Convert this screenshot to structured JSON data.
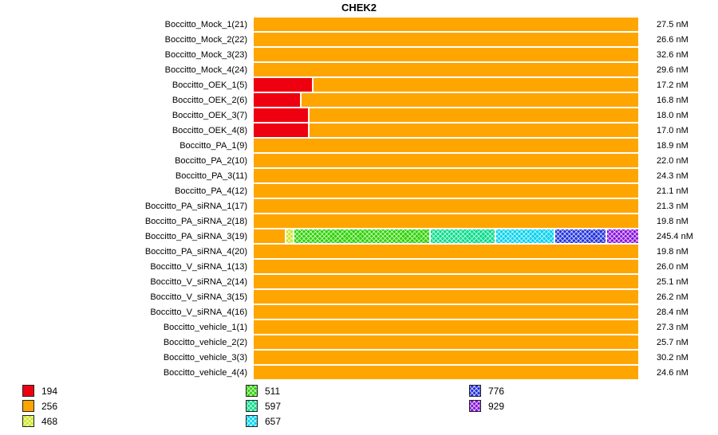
{
  "title": "CHEK2",
  "chart_data": {
    "type": "bar",
    "orientation": "horizontal",
    "title": "CHEK2",
    "value_unit": "nM",
    "legend": [
      {
        "value": 194,
        "color": "#ee0011",
        "hatch": false
      },
      {
        "value": 256,
        "color": "#ffa500",
        "hatch": false
      },
      {
        "value": 468,
        "color": "#cde61a",
        "hatch": true
      },
      {
        "value": 511,
        "color": "#2bd300",
        "hatch": true
      },
      {
        "value": 597,
        "color": "#00dd88",
        "hatch": true
      },
      {
        "value": 657,
        "color": "#00d2ee",
        "hatch": true
      },
      {
        "value": 776,
        "color": "#2233dd",
        "hatch": true
      },
      {
        "value": 929,
        "color": "#8811dd",
        "hatch": true
      }
    ],
    "rows": [
      {
        "label": "Boccitto_Mock_1(21)",
        "value_nM": 27.5,
        "value_label": "27.5 nM",
        "segments": [
          {
            "value": 256,
            "pct": 100
          }
        ]
      },
      {
        "label": "Boccitto_Mock_2(22)",
        "value_nM": 26.6,
        "value_label": "26.6 nM",
        "segments": [
          {
            "value": 256,
            "pct": 100
          }
        ]
      },
      {
        "label": "Boccitto_Mock_3(23)",
        "value_nM": 32.6,
        "value_label": "32.6 nM",
        "segments": [
          {
            "value": 256,
            "pct": 100
          }
        ]
      },
      {
        "label": "Boccitto_Mock_4(24)",
        "value_nM": 29.6,
        "value_label": "29.6 nM",
        "segments": [
          {
            "value": 256,
            "pct": 100
          }
        ]
      },
      {
        "label": "Boccitto_OEK_1(5)",
        "value_nM": 17.2,
        "value_label": "17.2 nM",
        "segments": [
          {
            "value": 194,
            "pct": 15.5
          },
          {
            "value": 256,
            "pct": 84.5
          }
        ]
      },
      {
        "label": "Boccitto_OEK_2(6)",
        "value_nM": 16.8,
        "value_label": "16.8 nM",
        "segments": [
          {
            "value": 194,
            "pct": 12.5
          },
          {
            "value": 256,
            "pct": 87.5
          }
        ]
      },
      {
        "label": "Boccitto_OEK_3(7)",
        "value_nM": 18.0,
        "value_label": "18.0 nM",
        "segments": [
          {
            "value": 194,
            "pct": 14.5
          },
          {
            "value": 256,
            "pct": 85.5
          }
        ]
      },
      {
        "label": "Boccitto_OEK_4(8)",
        "value_nM": 17.0,
        "value_label": "17.0 nM",
        "segments": [
          {
            "value": 194,
            "pct": 14.5
          },
          {
            "value": 256,
            "pct": 85.5
          }
        ]
      },
      {
        "label": "Boccitto_PA_1(9)",
        "value_nM": 18.9,
        "value_label": "18.9 nM",
        "segments": [
          {
            "value": 256,
            "pct": 100
          }
        ]
      },
      {
        "label": "Boccitto_PA_2(10)",
        "value_nM": 22.0,
        "value_label": "22.0 nM",
        "segments": [
          {
            "value": 256,
            "pct": 100
          }
        ]
      },
      {
        "label": "Boccitto_PA_3(11)",
        "value_nM": 24.3,
        "value_label": "24.3 nM",
        "segments": [
          {
            "value": 256,
            "pct": 100
          }
        ]
      },
      {
        "label": "Boccitto_PA_4(12)",
        "value_nM": 21.1,
        "value_label": "21.1 nM",
        "segments": [
          {
            "value": 256,
            "pct": 100
          }
        ]
      },
      {
        "label": "Boccitto_PA_siRNA_1(17)",
        "value_nM": 21.3,
        "value_label": "21.3 nM",
        "segments": [
          {
            "value": 256,
            "pct": 100
          }
        ]
      },
      {
        "label": "Boccitto_PA_siRNA_2(18)",
        "value_nM": 19.8,
        "value_label": "19.8 nM",
        "segments": [
          {
            "value": 256,
            "pct": 100
          }
        ]
      },
      {
        "label": "Boccitto_PA_siRNA_3(19)",
        "value_nM": 245.4,
        "value_label": "245.4 nM",
        "segments": [
          {
            "value": 256,
            "pct": 8.5
          },
          {
            "value": 468,
            "pct": 2
          },
          {
            "value": 511,
            "pct": 35.5
          },
          {
            "value": 597,
            "pct": 17
          },
          {
            "value": 657,
            "pct": 15.5
          },
          {
            "value": 776,
            "pct": 13.5
          },
          {
            "value": 929,
            "pct": 8
          }
        ]
      },
      {
        "label": "Boccitto_PA_siRNA_4(20)",
        "value_nM": 19.8,
        "value_label": "19.8 nM",
        "segments": [
          {
            "value": 256,
            "pct": 100
          }
        ]
      },
      {
        "label": "Boccitto_V_siRNA_1(13)",
        "value_nM": 26.0,
        "value_label": "26.0 nM",
        "segments": [
          {
            "value": 256,
            "pct": 100
          }
        ]
      },
      {
        "label": "Boccitto_V_siRNA_2(14)",
        "value_nM": 25.1,
        "value_label": "25.1 nM",
        "segments": [
          {
            "value": 256,
            "pct": 100
          }
        ]
      },
      {
        "label": "Boccitto_V_siRNA_3(15)",
        "value_nM": 26.2,
        "value_label": "26.2 nM",
        "segments": [
          {
            "value": 256,
            "pct": 100
          }
        ]
      },
      {
        "label": "Boccitto_V_siRNA_4(16)",
        "value_nM": 28.4,
        "value_label": "28.4 nM",
        "segments": [
          {
            "value": 256,
            "pct": 100
          }
        ]
      },
      {
        "label": "Boccitto_vehicle_1(1)",
        "value_nM": 27.3,
        "value_label": "27.3 nM",
        "segments": [
          {
            "value": 256,
            "pct": 100
          }
        ]
      },
      {
        "label": "Boccitto_vehicle_2(2)",
        "value_nM": 25.7,
        "value_label": "25.7 nM",
        "segments": [
          {
            "value": 256,
            "pct": 100
          }
        ]
      },
      {
        "label": "Boccitto_vehicle_3(3)",
        "value_nM": 30.2,
        "value_label": "30.2 nM",
        "segments": [
          {
            "value": 256,
            "pct": 100
          }
        ]
      },
      {
        "label": "Boccitto_vehicle_4(4)",
        "value_nM": 24.6,
        "value_label": "24.6 nM",
        "segments": [
          {
            "value": 256,
            "pct": 100
          }
        ]
      }
    ]
  }
}
